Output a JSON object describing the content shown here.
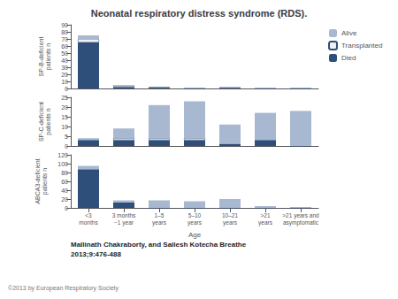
{
  "chart_data": [
    {
      "type": "bar",
      "title": "Neonatal respiratory distress syndrome (RDS).",
      "categories": [
        "<3\nmonths",
        "3 months\n−1 year",
        "1–5\nyears",
        "5–10\nyears",
        "10–21\nyears",
        ">21\nyears",
        ">21 years and\nasymptomatic"
      ],
      "series": [
        {
          "name": "Died",
          "color": "#2e4f7a",
          "values": [
            65,
            2,
            1,
            0,
            1,
            0,
            0
          ]
        },
        {
          "name": "Transplanted",
          "color": "#f0f0f0",
          "values": [
            5,
            2,
            1,
            0,
            0,
            0,
            0
          ]
        },
        {
          "name": "Alive",
          "color": "#a8b8d0",
          "values": [
            5,
            1,
            0,
            0,
            1,
            1,
            1
          ]
        }
      ],
      "ylabel": "SP-B-deficient\npatients n",
      "ylim": [
        0,
        90
      ],
      "yticks": [
        0,
        10,
        20,
        30,
        40,
        50,
        60,
        70,
        80,
        90
      ],
      "stacked": true,
      "grid": false,
      "legend": "right",
      "tick_labels": "y"
    },
    {
      "type": "bar",
      "categories": [
        "<3\nmonths",
        "3 months\n−1 year",
        "1–5\nyears",
        "5–10\nyears",
        "10–21\nyears",
        ">21\nyears",
        ">21 years and\nasymptomatic"
      ],
      "series": [
        {
          "name": "Died",
          "color": "#2e4f7a",
          "values": [
            3,
            3,
            3,
            3,
            1,
            3,
            0
          ]
        },
        {
          "name": "Transplanted",
          "color": "#f0f0f0",
          "values": [
            0,
            1,
            1,
            1,
            0,
            0,
            0
          ]
        },
        {
          "name": "Alive",
          "color": "#a8b8d0",
          "values": [
            1,
            5,
            17,
            19,
            10,
            14,
            18
          ]
        }
      ],
      "ylabel": "SP-C-deficient\npatients n",
      "ylim": [
        0,
        25
      ],
      "yticks": [
        0,
        5,
        10,
        15,
        20,
        25
      ],
      "stacked": true,
      "grid": false,
      "legend": false,
      "tick_labels": "y"
    },
    {
      "type": "bar",
      "categories": [
        "<3\nmonths",
        "3 months\n−1 year",
        "1–5\nyears",
        "5–10\nyears",
        "10–21\nyears",
        ">21\nyears",
        ">21 years and\nasymptomatic"
      ],
      "series": [
        {
          "name": "Died",
          "color": "#2e4f7a",
          "values": [
            87,
            12,
            0,
            0,
            0,
            0,
            0
          ]
        },
        {
          "name": "Transplanted",
          "color": "#f0f0f0",
          "values": [
            0,
            0,
            0,
            0,
            0,
            0,
            0
          ]
        },
        {
          "name": "Alive",
          "color": "#a8b8d0",
          "values": [
            8,
            5,
            17,
            15,
            20,
            4,
            1
          ]
        }
      ],
      "ylabel": "ABCA3-deficient\npatients n",
      "xlabel": "Age",
      "ylim": [
        0,
        120
      ],
      "yticks": [
        0,
        20,
        40,
        60,
        80,
        100,
        120
      ],
      "stacked": true,
      "grid": false,
      "legend": false,
      "annotations": [
        "Mallinath Chakraborty, and Sailesh Kotecha Breathe",
        "2013;9:476-488",
        "©2013 by European Respiratory Society"
      ]
    }
  ]
}
